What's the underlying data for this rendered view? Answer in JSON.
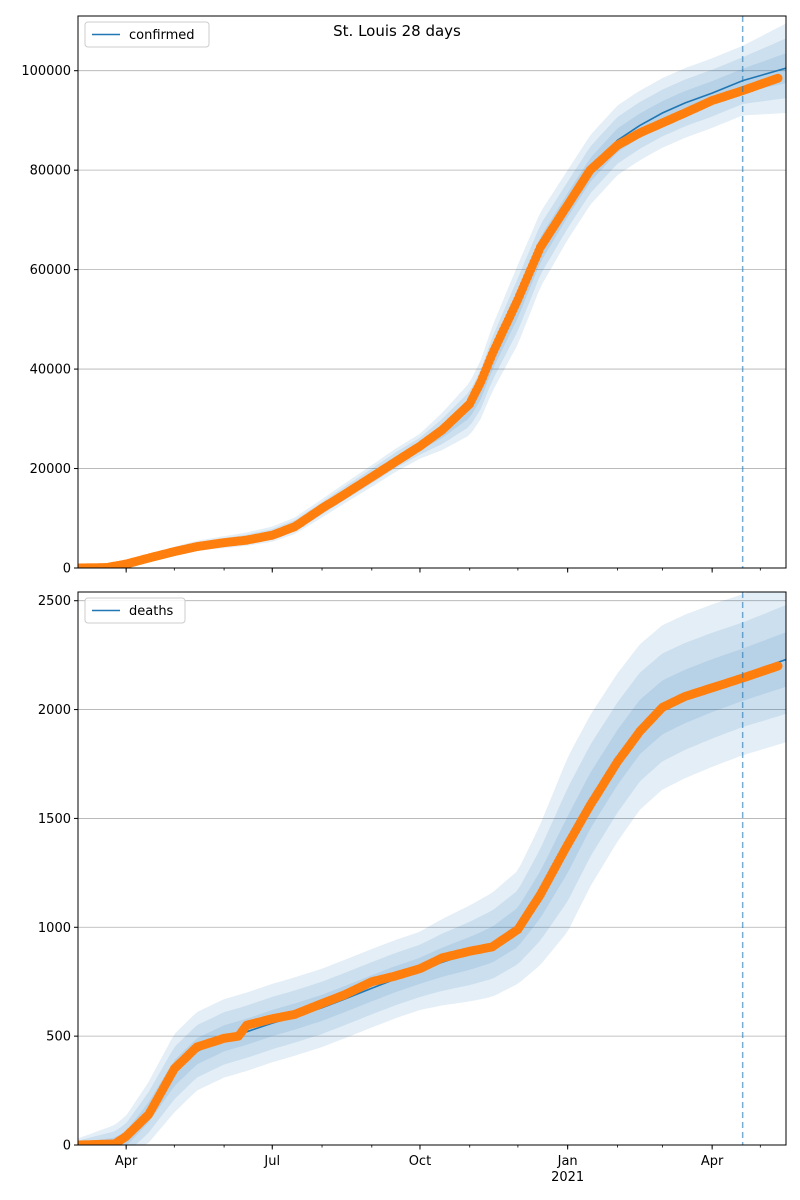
{
  "figure": {
    "suptitle": "St. Louis 28 days"
  },
  "colors": {
    "model_line": "#1f77b4",
    "observed": "#ff7f0e",
    "band": "#1f77b4",
    "grid": "#b0b0b0",
    "forecast_start_line": "#1f77b4"
  },
  "chart_data": [
    {
      "type": "line",
      "legend": "confirmed",
      "legend_position": "top-left",
      "grid": "horizontal",
      "forecast_start_date": "2021-04-20",
      "x_tick_labels": [
        {
          "date": "2020-04-01",
          "label": "Apr",
          "sublabel": ""
        },
        {
          "date": "2020-07-01",
          "label": "Jul",
          "sublabel": ""
        },
        {
          "date": "2020-10-01",
          "label": "Oct",
          "sublabel": ""
        },
        {
          "date": "2021-01-01",
          "label": "Jan",
          "sublabel": "2021"
        },
        {
          "date": "2021-04-01",
          "label": "Apr",
          "sublabel": ""
        }
      ],
      "xlim": [
        "2020-03-02",
        "2021-05-17"
      ],
      "ylim": [
        0,
        111000
      ],
      "y_ticks": [
        0,
        20000,
        40000,
        60000,
        80000,
        100000
      ],
      "y_tick_labels": [
        "0",
        "20000",
        "40000",
        "60000",
        "80000",
        "100000"
      ],
      "series": [
        {
          "name": "confirmed",
          "kind": "model-mean",
          "points": [
            [
              "2020-03-02",
              0
            ],
            [
              "2020-03-20",
              100
            ],
            [
              "2020-04-01",
              800
            ],
            [
              "2020-04-15",
              2200
            ],
            [
              "2020-05-01",
              3500
            ],
            [
              "2020-05-15",
              4500
            ],
            [
              "2020-06-01",
              5200
            ],
            [
              "2020-06-15",
              5800
            ],
            [
              "2020-07-01",
              6800
            ],
            [
              "2020-07-15",
              8500
            ],
            [
              "2020-08-01",
              12000
            ],
            [
              "2020-08-15",
              15000
            ],
            [
              "2020-09-01",
              18500
            ],
            [
              "2020-09-15",
              21500
            ],
            [
              "2020-10-01",
              24500
            ],
            [
              "2020-10-15",
              27500
            ],
            [
              "2020-11-01",
              32000
            ],
            [
              "2020-11-08",
              36000
            ],
            [
              "2020-11-15",
              42000
            ],
            [
              "2020-12-01",
              53000
            ],
            [
              "2020-12-15",
              64000
            ],
            [
              "2021-01-01",
              73000
            ],
            [
              "2021-01-15",
              80000
            ],
            [
              "2021-02-01",
              86000
            ],
            [
              "2021-02-15",
              89000
            ],
            [
              "2021-03-01",
              91500
            ],
            [
              "2021-03-15",
              93500
            ],
            [
              "2021-04-01",
              95500
            ],
            [
              "2021-04-20",
              98000
            ],
            [
              "2021-05-17",
              100500
            ]
          ]
        },
        {
          "name": "",
          "kind": "observed",
          "points": [
            [
              "2020-03-02",
              0
            ],
            [
              "2020-03-20",
              100
            ],
            [
              "2020-04-01",
              800
            ],
            [
              "2020-04-15",
              2000
            ],
            [
              "2020-05-01",
              3300
            ],
            [
              "2020-05-15",
              4300
            ],
            [
              "2020-06-01",
              5100
            ],
            [
              "2020-06-15",
              5600
            ],
            [
              "2020-07-01",
              6600
            ],
            [
              "2020-07-15",
              8300
            ],
            [
              "2020-08-01",
              12000
            ],
            [
              "2020-08-15",
              14800
            ],
            [
              "2020-09-01",
              18300
            ],
            [
              "2020-09-15",
              21200
            ],
            [
              "2020-10-01",
              24500
            ],
            [
              "2020-10-15",
              27800
            ],
            [
              "2020-11-01",
              33000
            ],
            [
              "2020-11-08",
              37500
            ],
            [
              "2020-11-15",
              43000
            ],
            [
              "2020-12-01",
              54000
            ],
            [
              "2020-12-15",
              64500
            ],
            [
              "2021-01-01",
              73000
            ],
            [
              "2021-01-15",
              80000
            ],
            [
              "2021-02-01",
              85000
            ],
            [
              "2021-02-15",
              87500
            ],
            [
              "2021-03-01",
              89500
            ],
            [
              "2021-03-15",
              91500
            ],
            [
              "2021-04-01",
              94000
            ],
            [
              "2021-04-20",
              96000
            ],
            [
              "2021-05-12",
              98500
            ]
          ]
        }
      ],
      "uncertainty_bands": [
        {
          "level": "outer",
          "widths": [
            [
              "2020-03-02",
              0
            ],
            [
              "2020-06-01",
              1200
            ],
            [
              "2020-10-01",
              2500
            ],
            [
              "2020-12-01",
              8000
            ],
            [
              "2021-01-01",
              7000
            ],
            [
              "2021-04-20",
              7000
            ],
            [
              "2021-05-17",
              9000
            ]
          ]
        },
        {
          "level": "middle",
          "widths": [
            [
              "2020-03-02",
              0
            ],
            [
              "2020-06-01",
              800
            ],
            [
              "2020-10-01",
              1700
            ],
            [
              "2020-12-01",
              5300
            ],
            [
              "2021-01-01",
              4700
            ],
            [
              "2021-04-20",
              4700
            ],
            [
              "2021-05-17",
              6000
            ]
          ]
        },
        {
          "level": "inner",
          "widths": [
            [
              "2020-03-02",
              0
            ],
            [
              "2020-06-01",
              400
            ],
            [
              "2020-10-01",
              900
            ],
            [
              "2020-12-01",
              2700
            ],
            [
              "2021-01-01",
              2400
            ],
            [
              "2021-04-20",
              2400
            ],
            [
              "2021-05-17",
              3000
            ]
          ]
        }
      ]
    },
    {
      "type": "line",
      "legend": "deaths",
      "legend_position": "top-left",
      "grid": "horizontal",
      "forecast_start_date": "2021-04-20",
      "x_tick_labels": [
        {
          "date": "2020-04-01",
          "label": "Apr",
          "sublabel": ""
        },
        {
          "date": "2020-07-01",
          "label": "Jul",
          "sublabel": ""
        },
        {
          "date": "2020-10-01",
          "label": "Oct",
          "sublabel": ""
        },
        {
          "date": "2021-01-01",
          "label": "Jan",
          "sublabel": "2021"
        },
        {
          "date": "2021-04-01",
          "label": "Apr",
          "sublabel": ""
        }
      ],
      "xlim": [
        "2020-03-02",
        "2021-05-17"
      ],
      "ylim": [
        0,
        2540
      ],
      "y_ticks": [
        0,
        500,
        1000,
        1500,
        2000,
        2500
      ],
      "y_tick_labels": [
        "0",
        "500",
        "1000",
        "1500",
        "2000",
        "2500"
      ],
      "series": [
        {
          "name": "deaths",
          "kind": "model-mean",
          "points": [
            [
              "2020-03-02",
              0
            ],
            [
              "2020-03-25",
              5
            ],
            [
              "2020-04-01",
              30
            ],
            [
              "2020-04-15",
              150
            ],
            [
              "2020-05-01",
              330
            ],
            [
              "2020-05-15",
              430
            ],
            [
              "2020-06-01",
              490
            ],
            [
              "2020-06-15",
              520
            ],
            [
              "2020-07-01",
              560
            ],
            [
              "2020-07-15",
              590
            ],
            [
              "2020-08-01",
              630
            ],
            [
              "2020-08-15",
              670
            ],
            [
              "2020-09-01",
              720
            ],
            [
              "2020-09-15",
              760
            ],
            [
              "2020-10-01",
              800
            ],
            [
              "2020-10-15",
              840
            ],
            [
              "2020-11-01",
              880
            ],
            [
              "2020-11-15",
              920
            ],
            [
              "2020-12-01",
              1000
            ],
            [
              "2020-12-15",
              1150
            ],
            [
              "2021-01-01",
              1380
            ],
            [
              "2021-01-15",
              1580
            ],
            [
              "2021-02-01",
              1780
            ],
            [
              "2021-02-15",
              1920
            ],
            [
              "2021-03-01",
              2010
            ],
            [
              "2021-03-15",
              2060
            ],
            [
              "2021-04-01",
              2110
            ],
            [
              "2021-04-20",
              2160
            ],
            [
              "2021-05-17",
              2230
            ]
          ]
        },
        {
          "name": "",
          "kind": "observed",
          "points": [
            [
              "2020-03-02",
              0
            ],
            [
              "2020-03-25",
              5
            ],
            [
              "2020-04-01",
              40
            ],
            [
              "2020-04-15",
              140
            ],
            [
              "2020-05-01",
              350
            ],
            [
              "2020-05-15",
              450
            ],
            [
              "2020-06-01",
              490
            ],
            [
              "2020-06-10",
              500
            ],
            [
              "2020-06-15",
              550
            ],
            [
              "2020-07-01",
              580
            ],
            [
              "2020-07-15",
              600
            ],
            [
              "2020-08-01",
              650
            ],
            [
              "2020-08-15",
              690
            ],
            [
              "2020-09-01",
              750
            ],
            [
              "2020-09-15",
              775
            ],
            [
              "2020-10-01",
              810
            ],
            [
              "2020-10-15",
              860
            ],
            [
              "2020-11-01",
              890
            ],
            [
              "2020-11-15",
              910
            ],
            [
              "2020-12-01",
              990
            ],
            [
              "2020-12-15",
              1150
            ],
            [
              "2021-01-01",
              1380
            ],
            [
              "2021-01-15",
              1560
            ],
            [
              "2021-02-01",
              1760
            ],
            [
              "2021-02-15",
              1900
            ],
            [
              "2021-03-01",
              2010
            ],
            [
              "2021-03-15",
              2060
            ],
            [
              "2021-04-01",
              2100
            ],
            [
              "2021-04-20",
              2145
            ],
            [
              "2021-05-12",
              2200
            ]
          ]
        }
      ],
      "uncertainty_bands": [
        {
          "level": "outer",
          "widths": [
            [
              "2020-03-02",
              30
            ],
            [
              "2020-05-01",
              180
            ],
            [
              "2020-07-01",
              180
            ],
            [
              "2020-10-01",
              180
            ],
            [
              "2020-12-01",
              260
            ],
            [
              "2021-01-01",
              400
            ],
            [
              "2021-02-15",
              380
            ],
            [
              "2021-04-20",
              370
            ],
            [
              "2021-05-17",
              380
            ]
          ]
        },
        {
          "level": "middle",
          "widths": [
            [
              "2020-03-02",
              20
            ],
            [
              "2020-05-01",
              120
            ],
            [
              "2020-07-01",
              120
            ],
            [
              "2020-10-01",
              120
            ],
            [
              "2020-12-01",
              170
            ],
            [
              "2021-01-01",
              260
            ],
            [
              "2021-02-15",
              250
            ],
            [
              "2021-04-20",
              240
            ],
            [
              "2021-05-17",
              250
            ]
          ]
        },
        {
          "level": "inner",
          "widths": [
            [
              "2020-03-02",
              10
            ],
            [
              "2020-05-01",
              60
            ],
            [
              "2020-07-01",
              60
            ],
            [
              "2020-10-01",
              60
            ],
            [
              "2020-12-01",
              90
            ],
            [
              "2021-01-01",
              130
            ],
            [
              "2021-02-15",
              125
            ],
            [
              "2021-04-20",
              120
            ],
            [
              "2021-05-17",
              125
            ]
          ]
        }
      ]
    }
  ]
}
